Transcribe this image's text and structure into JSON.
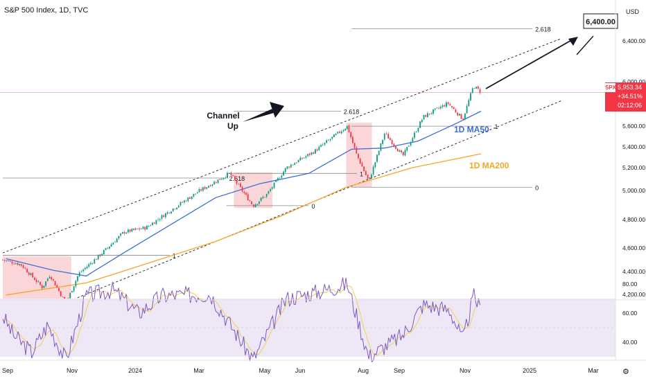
{
  "header": {
    "title": "S&P 500 Index, 1D, TVC",
    "currency": "USD",
    "corner_icon": "tv-gear-icon"
  },
  "price_tag": {
    "symbol": "SPX",
    "price": "5,953.34",
    "change": "+34.51%",
    "countdown": "02:12:06",
    "color": "#f23645"
  },
  "colors": {
    "ma50": "#3a6fd8",
    "ma200": "#f5a623",
    "candle_up": "#089981",
    "candle_down": "#f23645",
    "rsi": "#7e57c2",
    "rsi_ma": "#f0d050",
    "rsi_band": "#ede7f6",
    "rect": "#f8c8cc",
    "fib": "#888888"
  },
  "chart_data": [
    {
      "type": "candlestick",
      "title": "S&P 500 Index, 1D, TVC",
      "x_tick_labels": [
        "Sep",
        "Nov",
        "2024",
        "Mar",
        "May",
        "Jun",
        "Aug",
        "Sep",
        "Nov",
        "2025",
        "Mar"
      ],
      "y_tick_labels": [
        "4,200.00",
        "4,400.00",
        "4,600.00",
        "4,800.00",
        "5,000.00",
        "5,200.00",
        "5,400.00",
        "5,600.00",
        "6,000.00",
        "6,400.00"
      ],
      "ylim": [
        4050,
        6750
      ],
      "last_price": 5953.34,
      "price_path": [
        [
          "2023-08-29",
          4500
        ],
        [
          "2023-09-15",
          4460
        ],
        [
          "2023-10-05",
          4260
        ],
        [
          "2023-10-12",
          4370
        ],
        [
          "2023-10-27",
          4120
        ],
        [
          "2023-11-08",
          4380
        ],
        [
          "2023-11-30",
          4560
        ],
        [
          "2023-12-20",
          4740
        ],
        [
          "2024-01-10",
          4780
        ],
        [
          "2024-02-05",
          4950
        ],
        [
          "2024-02-29",
          5100
        ],
        [
          "2024-03-28",
          5250
        ],
        [
          "2024-04-19",
          4970
        ],
        [
          "2024-05-02",
          5070
        ],
        [
          "2024-05-20",
          5300
        ],
        [
          "2024-06-15",
          5440
        ],
        [
          "2024-07-16",
          5660
        ],
        [
          "2024-07-24",
          5430
        ],
        [
          "2024-08-05",
          5180
        ],
        [
          "2024-08-20",
          5600
        ],
        [
          "2024-09-06",
          5400
        ],
        [
          "2024-09-25",
          5740
        ],
        [
          "2024-10-18",
          5860
        ],
        [
          "2024-11-01",
          5720
        ],
        [
          "2024-11-11",
          6010
        ],
        [
          "2024-11-18",
          5953
        ]
      ],
      "series": [
        {
          "name": "1D MA50",
          "values": [
            [
              "2023-09-01",
              4510
            ],
            [
              "2023-10-15",
              4410
            ],
            [
              "2023-11-15",
              4360
            ],
            [
              "2023-12-20",
              4560
            ],
            [
              "2024-02-01",
              4800
            ],
            [
              "2024-03-15",
              5040
            ],
            [
              "2024-04-25",
              5160
            ],
            [
              "2024-06-10",
              5250
            ],
            [
              "2024-07-20",
              5460
            ],
            [
              "2024-08-20",
              5470
            ],
            [
              "2024-09-20",
              5530
            ],
            [
              "2024-10-25",
              5680
            ],
            [
              "2024-11-18",
              5790
            ]
          ]
        },
        {
          "name": "1D MA200",
          "values": [
            [
              "2023-09-01",
              4195
            ],
            [
              "2023-11-15",
              4300
            ],
            [
              "2024-01-15",
              4480
            ],
            [
              "2024-03-15",
              4660
            ],
            [
              "2024-05-15",
              4880
            ],
            [
              "2024-07-15",
              5130
            ],
            [
              "2024-09-15",
              5300
            ],
            [
              "2024-11-18",
              5420
            ]
          ]
        }
      ],
      "channel": {
        "label": "Channel Up",
        "upper": [
          [
            "2023-08-29",
            4560
          ],
          [
            "2025-02-01",
            6420
          ]
        ],
        "lower": [
          [
            "2023-10-27",
            4130
          ],
          [
            "2025-02-01",
            5880
          ]
        ]
      },
      "target": {
        "label": "6,400.00",
        "value": 6400
      },
      "fib_levels": [
        {
          "label": "2.618",
          "value": 6505,
          "from": "2024-07-20",
          "to": "2025-01-05"
        },
        {
          "label": "1",
          "value": 5660,
          "from": "2024-07-20",
          "to": "2024-11-28"
        },
        {
          "label": "0",
          "value": 5130,
          "from": "2024-07-20",
          "to": "2025-01-05"
        },
        {
          "label": "2.618",
          "value": 5790,
          "from": "2024-04-01",
          "to": "2024-07-10"
        },
        {
          "label": "1",
          "value": 5250,
          "from": "2024-03-25",
          "to": "2024-07-25"
        },
        {
          "label": "0",
          "value": 4970,
          "from": "2024-03-25",
          "to": "2024-06-10"
        },
        {
          "label": "2.618",
          "value": 5210,
          "from": "2023-08-29",
          "to": "2024-03-25"
        },
        {
          "label": "1",
          "value": 4540,
          "from": "2023-08-29",
          "to": "2024-02-01"
        },
        {
          "label": "0",
          "value": 4150,
          "from": "2023-08-29",
          "to": "2024-03-18"
        }
      ],
      "highlight_zones": [
        {
          "from": "2023-08-29",
          "to": "2023-11-01",
          "low": 4130,
          "high": 4530
        },
        {
          "from": "2024-04-01",
          "to": "2024-05-07",
          "low": 4950,
          "high": 5260
        },
        {
          "from": "2024-07-15",
          "to": "2024-08-08",
          "low": 5130,
          "high": 5690
        }
      ],
      "annotations": [
        "Channel Up",
        "1D MA50",
        "1D MA200",
        "6,400.00"
      ]
    },
    {
      "type": "line",
      "title": "RSI",
      "y_tick_labels": [
        "80.00",
        "60.00",
        "40.00"
      ],
      "ylim": [
        25,
        85
      ],
      "band": [
        30,
        70
      ],
      "series": [
        {
          "values": [
            [
              "2023-08-29",
              58
            ],
            [
              "2023-09-08",
              45
            ],
            [
              "2023-09-25",
              33
            ],
            [
              "2023-10-10",
              52
            ],
            [
              "2023-10-27",
              28
            ],
            [
              "2023-11-15",
              72
            ],
            [
              "2023-12-10",
              76
            ],
            [
              "2024-01-03",
              60
            ],
            [
              "2024-01-25",
              72
            ],
            [
              "2024-03-10",
              73
            ],
            [
              "2024-04-19",
              28
            ],
            [
              "2024-05-20",
              70
            ],
            [
              "2024-06-20",
              75
            ],
            [
              "2024-07-16",
              80
            ],
            [
              "2024-08-05",
              30
            ],
            [
              "2024-09-06",
              45
            ],
            [
              "2024-09-25",
              66
            ],
            [
              "2024-10-20",
              62
            ],
            [
              "2024-11-01",
              41
            ],
            [
              "2024-11-11",
              72
            ],
            [
              "2024-11-18",
              62
            ]
          ]
        }
      ]
    }
  ]
}
